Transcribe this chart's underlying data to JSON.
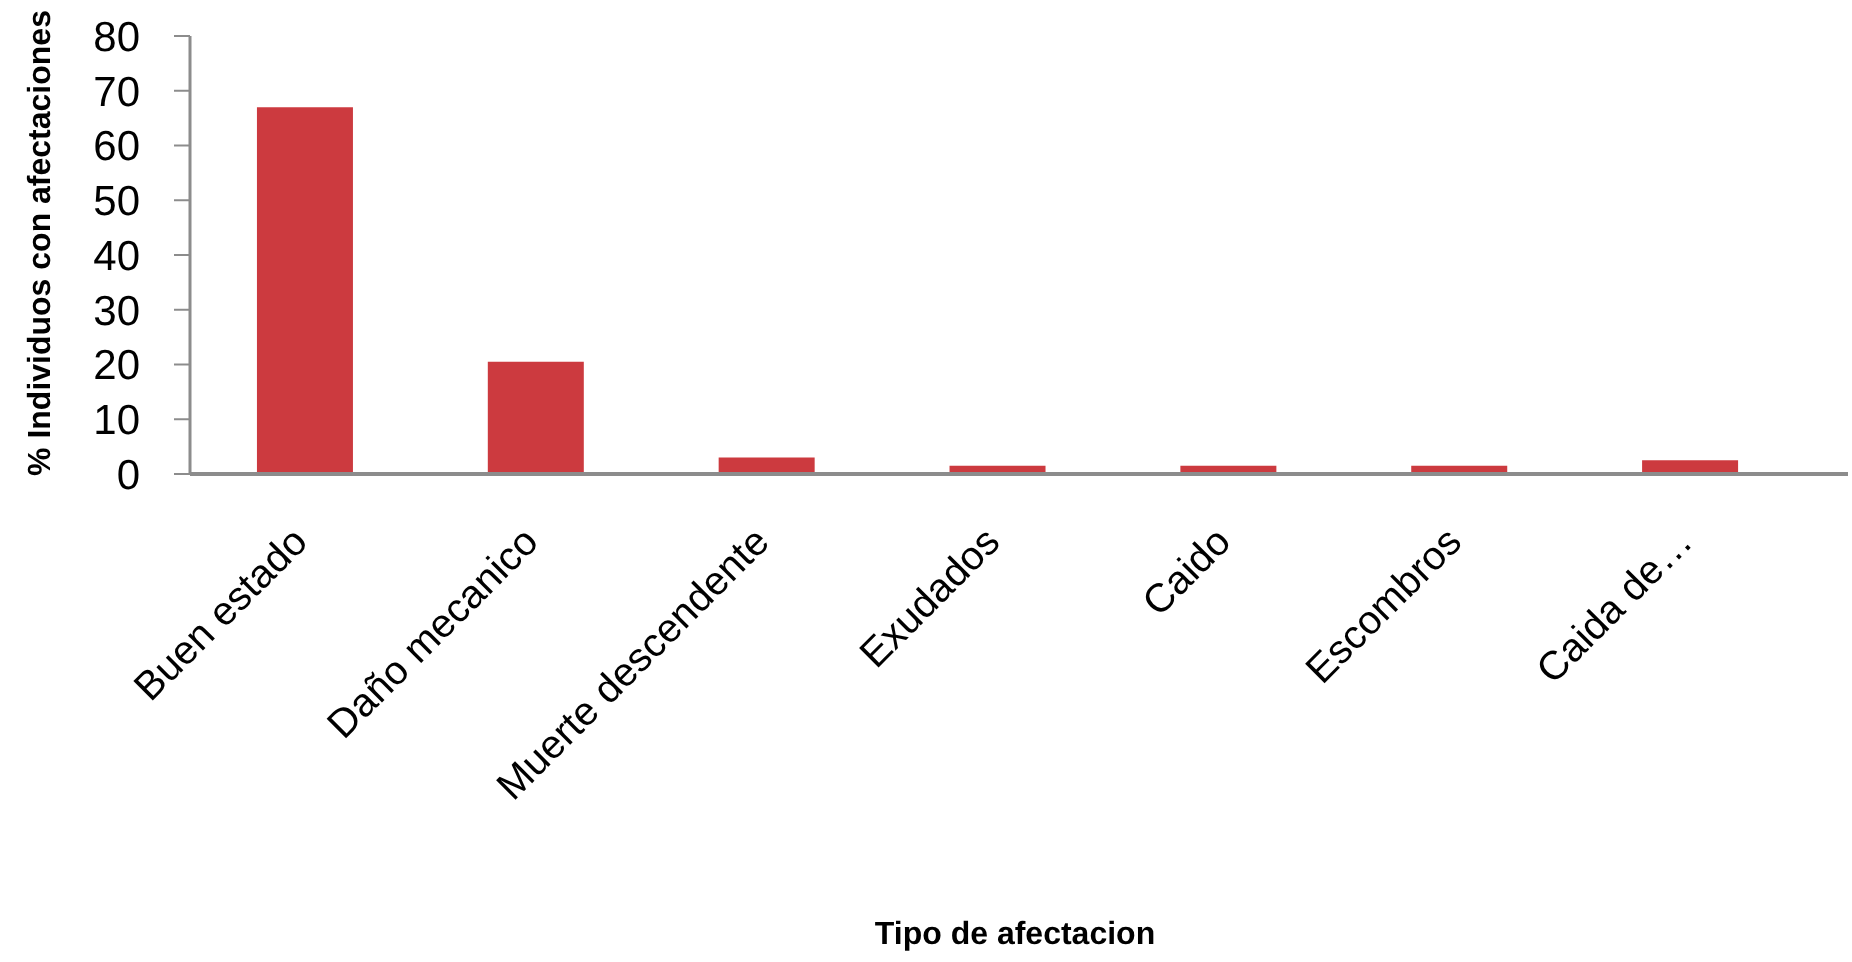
{
  "chart_data": {
    "type": "bar",
    "xlabel": "Tipo de afectacion",
    "ylabel": "% Individuos con afectaciones",
    "categories": [
      "Buen estado",
      "Daño mecanico",
      "Muerte descendente",
      "Exudados",
      "Caido",
      "Escombros",
      "Caida de…"
    ],
    "values": [
      67,
      20.5,
      3,
      1.5,
      1.5,
      1.5,
      2.5
    ],
    "color": "#cc3a3f",
    "ylim": [
      0,
      80
    ],
    "yticks": [
      0,
      10,
      20,
      30,
      40,
      50,
      60,
      70,
      80
    ]
  }
}
